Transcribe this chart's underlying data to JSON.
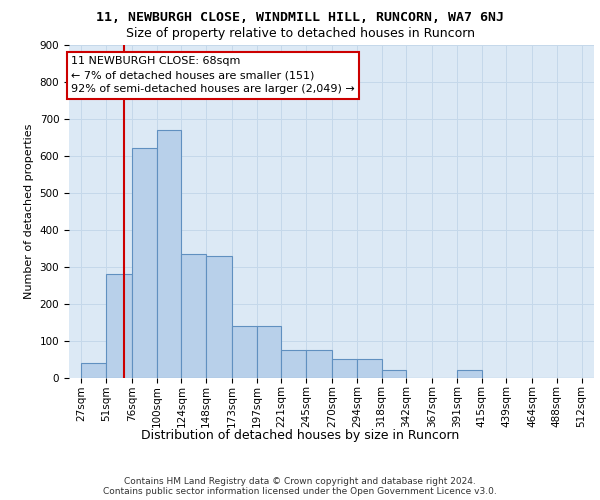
{
  "title1": "11, NEWBURGH CLOSE, WINDMILL HILL, RUNCORN, WA7 6NJ",
  "title2": "Size of property relative to detached houses in Runcorn",
  "xlabel": "Distribution of detached houses by size in Runcorn",
  "ylabel": "Number of detached properties",
  "footer1": "Contains HM Land Registry data © Crown copyright and database right 2024.",
  "footer2": "Contains public sector information licensed under the Open Government Licence v3.0.",
  "bar_edges": [
    27,
    51,
    76,
    100,
    124,
    148,
    173,
    197,
    221,
    245,
    270,
    294,
    318,
    342,
    367,
    391,
    415,
    439,
    464,
    488,
    512
  ],
  "bar_heights": [
    40,
    280,
    620,
    670,
    335,
    330,
    140,
    140,
    75,
    75,
    50,
    50,
    20,
    0,
    0,
    20,
    0,
    0,
    0,
    0,
    0
  ],
  "bar_color": "#b8d0ea",
  "bar_edgecolor": "#6090c0",
  "grid_color": "#c5d8ea",
  "bg_color": "#dce9f5",
  "property_size": 68,
  "annotation_line1": "11 NEWBURGH CLOSE: 68sqm",
  "annotation_line2": "← 7% of detached houses are smaller (151)",
  "annotation_line3": "92% of semi-detached houses are larger (2,049) →",
  "vline_color": "#cc0000",
  "annotation_box_edgecolor": "#cc0000",
  "ylim_max": 900,
  "ytick_step": 100,
  "title1_fontsize": 9.5,
  "title2_fontsize": 9,
  "ylabel_fontsize": 8,
  "xlabel_fontsize": 9,
  "tick_fontsize": 7.5,
  "footer_fontsize": 6.5,
  "annotation_fontsize": 8
}
